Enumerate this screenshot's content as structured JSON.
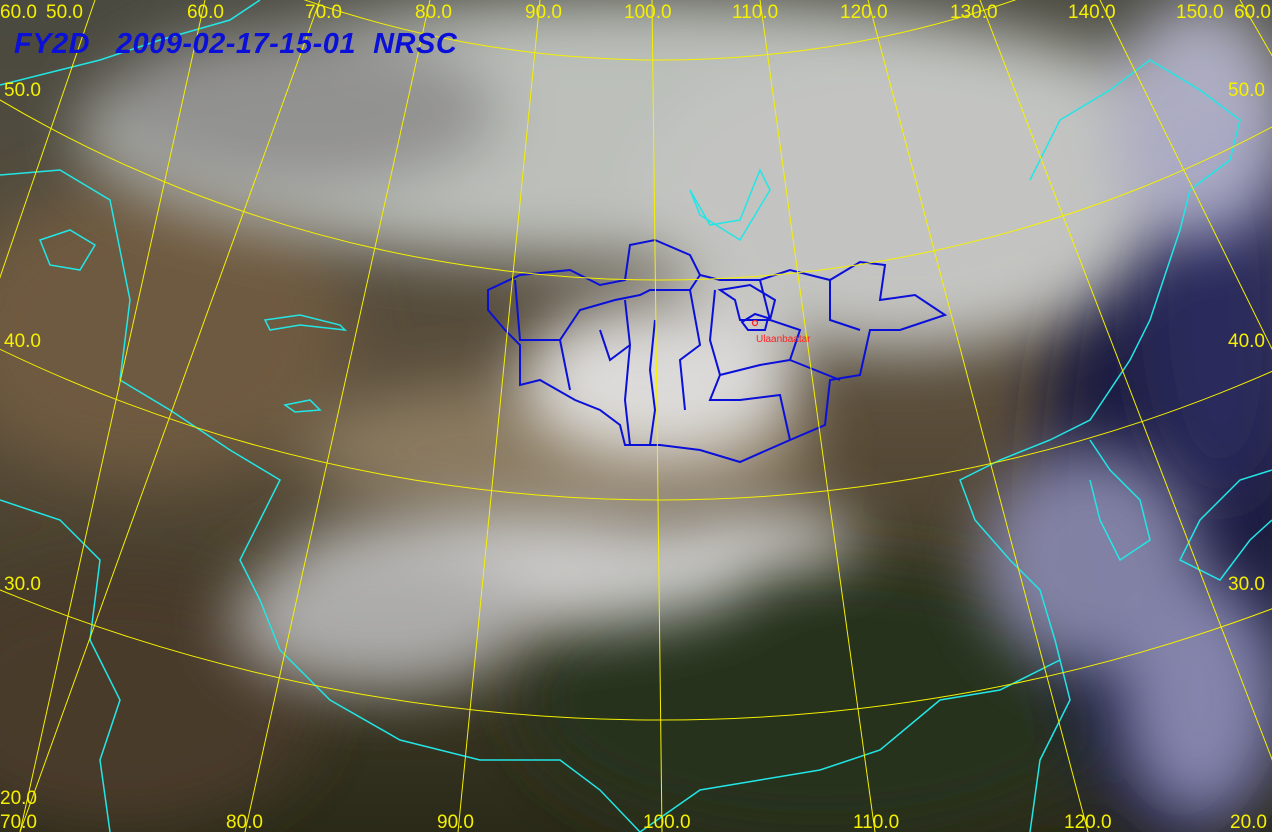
{
  "title": {
    "satellite": "FY2D",
    "datetime": "2009-02-17-15-01",
    "agency": "NRSC"
  },
  "colors": {
    "graticule": "#f5f000",
    "coastline": "#22e6e6",
    "admin_boundary": "#0a10d8",
    "title": "#0a10d8",
    "city": "#ff2020"
  },
  "graticule": {
    "top_labels": [
      "60.0",
      "50.0",
      "60.0",
      "70.0",
      "80.0",
      "90.0",
      "100.0",
      "110.0",
      "120.0",
      "130.0",
      "140.0",
      "60.0",
      "150.0"
    ],
    "left_labels": [
      "50.0",
      "40.0",
      "30.0"
    ],
    "right_labels": [
      "50.0",
      "40.0",
      "30.0"
    ],
    "bottom_labels": [
      "70.0",
      "20.0",
      "80.0",
      "90.0",
      "100.0",
      "110.0",
      "120.0",
      "20.0"
    ]
  },
  "city": {
    "name": "Ulaanbaatar"
  }
}
